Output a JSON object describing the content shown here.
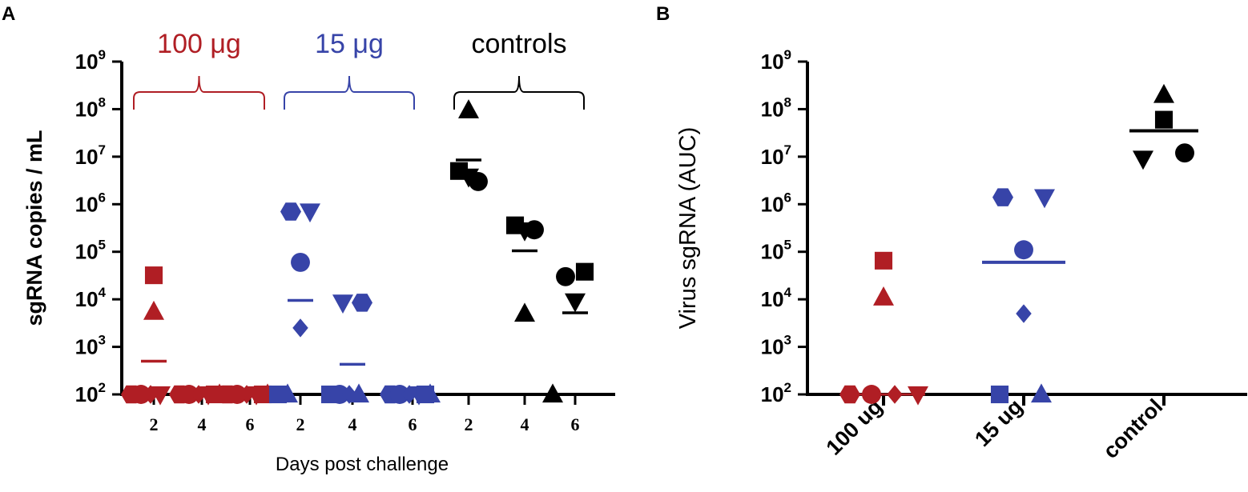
{
  "colors": {
    "red": "#b01e24",
    "blue": "#3744a8",
    "black": "#000000"
  },
  "chart_data": [
    {
      "panel": "A",
      "type": "scatter",
      "scale": "log10",
      "ylabel": "sgRNA copies / mL",
      "xlabel": "Days post challenge",
      "ylim": [
        100,
        1000000000
      ],
      "yticks": [
        {
          "base": "10",
          "exp": "2"
        },
        {
          "base": "10",
          "exp": "3"
        },
        {
          "base": "10",
          "exp": "4"
        },
        {
          "base": "10",
          "exp": "5"
        },
        {
          "base": "10",
          "exp": "6"
        },
        {
          "base": "10",
          "exp": "7"
        },
        {
          "base": "10",
          "exp": "8"
        },
        {
          "base": "10",
          "exp": "9"
        }
      ],
      "groups": [
        {
          "label": "100 μg",
          "color": "red"
        },
        {
          "label": "15 μg",
          "color": "blue"
        },
        {
          "label": "controls",
          "color": "black"
        }
      ],
      "categories": [
        {
          "tick": "2",
          "group": 0,
          "mean": 500,
          "points": [
            {
              "shape": "square",
              "y": 32000
            },
            {
              "shape": "triangle",
              "y": 5500
            },
            {
              "shape": "hexagon",
              "y": 100
            },
            {
              "shape": "circle",
              "y": 100
            },
            {
              "shape": "diamond",
              "y": 100
            },
            {
              "shape": "tri-down",
              "y": 100
            }
          ]
        },
        {
          "tick": "4",
          "group": 0,
          "mean": 100,
          "points": [
            {
              "shape": "hexagon",
              "y": 100
            },
            {
              "shape": "circle",
              "y": 100
            },
            {
              "shape": "diamond",
              "y": 100
            },
            {
              "shape": "tri-down",
              "y": 100
            },
            {
              "shape": "square",
              "y": 100
            },
            {
              "shape": "triangle",
              "y": 100
            }
          ]
        },
        {
          "tick": "6",
          "group": 0,
          "mean": 100,
          "points": [
            {
              "shape": "hexagon",
              "y": 100
            },
            {
              "shape": "circle",
              "y": 100
            },
            {
              "shape": "diamond",
              "y": 100
            },
            {
              "shape": "tri-down",
              "y": 100
            },
            {
              "shape": "square",
              "y": 100
            },
            {
              "shape": "triangle",
              "y": 100
            }
          ]
        },
        {
          "tick": "2",
          "group": 1,
          "mean": 9500,
          "points": [
            {
              "shape": "hexagon",
              "y": 700000
            },
            {
              "shape": "tri-down",
              "y": 700000
            },
            {
              "shape": "circle",
              "y": 60000
            },
            {
              "shape": "diamond",
              "y": 2500
            },
            {
              "shape": "square",
              "y": 100
            },
            {
              "shape": "triangle",
              "y": 100
            }
          ]
        },
        {
          "tick": "4",
          "group": 1,
          "mean": 430,
          "points": [
            {
              "shape": "tri-down",
              "y": 8500
            },
            {
              "shape": "hexagon",
              "y": 8500
            },
            {
              "shape": "square",
              "y": 100
            },
            {
              "shape": "circle",
              "y": 100
            },
            {
              "shape": "diamond",
              "y": 100
            },
            {
              "shape": "triangle",
              "y": 100
            }
          ]
        },
        {
          "tick": "6",
          "group": 1,
          "mean": 100,
          "points": [
            {
              "shape": "hexagon",
              "y": 100
            },
            {
              "shape": "circle",
              "y": 100
            },
            {
              "shape": "diamond",
              "y": 100
            },
            {
              "shape": "tri-down",
              "y": 100
            },
            {
              "shape": "square",
              "y": 100
            },
            {
              "shape": "triangle",
              "y": 100
            }
          ]
        },
        {
          "tick": "2",
          "group": 2,
          "mean": 8500000,
          "points": [
            {
              "shape": "triangle",
              "y": 95000000
            },
            {
              "shape": "square",
              "y": 5000000
            },
            {
              "shape": "tri-down",
              "y": 3800000
            },
            {
              "shape": "circle",
              "y": 3000000
            }
          ]
        },
        {
          "tick": "4",
          "group": 2,
          "mean": 105000,
          "points": [
            {
              "shape": "square",
              "y": 360000
            },
            {
              "shape": "tri-down",
              "y": 280000
            },
            {
              "shape": "circle",
              "y": 290000
            },
            {
              "shape": "triangle",
              "y": 5000
            }
          ]
        },
        {
          "tick": "6",
          "group": 2,
          "mean": 5200,
          "points": [
            {
              "shape": "circle",
              "y": 30000
            },
            {
              "shape": "square",
              "y": 38000
            },
            {
              "shape": "tri-down",
              "y": 9000
            },
            {
              "shape": "triangle",
              "y": 100
            }
          ]
        }
      ]
    },
    {
      "panel": "B",
      "type": "scatter",
      "scale": "log10",
      "ylabel": "Virus sgRNA (AUC)",
      "ylim": [
        100,
        1000000000
      ],
      "yticks": [
        {
          "base": "10",
          "exp": "2"
        },
        {
          "base": "10",
          "exp": "3"
        },
        {
          "base": "10",
          "exp": "4"
        },
        {
          "base": "10",
          "exp": "5"
        },
        {
          "base": "10",
          "exp": "6"
        },
        {
          "base": "10",
          "exp": "7"
        },
        {
          "base": "10",
          "exp": "8"
        },
        {
          "base": "10",
          "exp": "9"
        }
      ],
      "categories": [
        {
          "label": "100 ug",
          "color": "red",
          "mean": 100,
          "points": [
            {
              "shape": "square",
              "y": 65000
            },
            {
              "shape": "triangle",
              "y": 11000
            },
            {
              "shape": "hexagon",
              "y": 100
            },
            {
              "shape": "circle",
              "y": 100
            },
            {
              "shape": "diamond",
              "y": 100
            },
            {
              "shape": "tri-down",
              "y": 100
            }
          ]
        },
        {
          "label": "15 ug",
          "color": "blue",
          "mean": 60000,
          "points": [
            {
              "shape": "hexagon",
              "y": 1400000
            },
            {
              "shape": "tri-down",
              "y": 1400000
            },
            {
              "shape": "circle",
              "y": 110000
            },
            {
              "shape": "diamond",
              "y": 5000
            },
            {
              "shape": "square",
              "y": 100
            },
            {
              "shape": "triangle",
              "y": 100
            }
          ]
        },
        {
          "label": "control",
          "color": "black",
          "mean": 35000000,
          "points": [
            {
              "shape": "triangle",
              "y": 200000000
            },
            {
              "shape": "square",
              "y": 60000000
            },
            {
              "shape": "tri-down",
              "y": 9000000
            },
            {
              "shape": "circle",
              "y": 12000000
            }
          ]
        }
      ]
    }
  ]
}
